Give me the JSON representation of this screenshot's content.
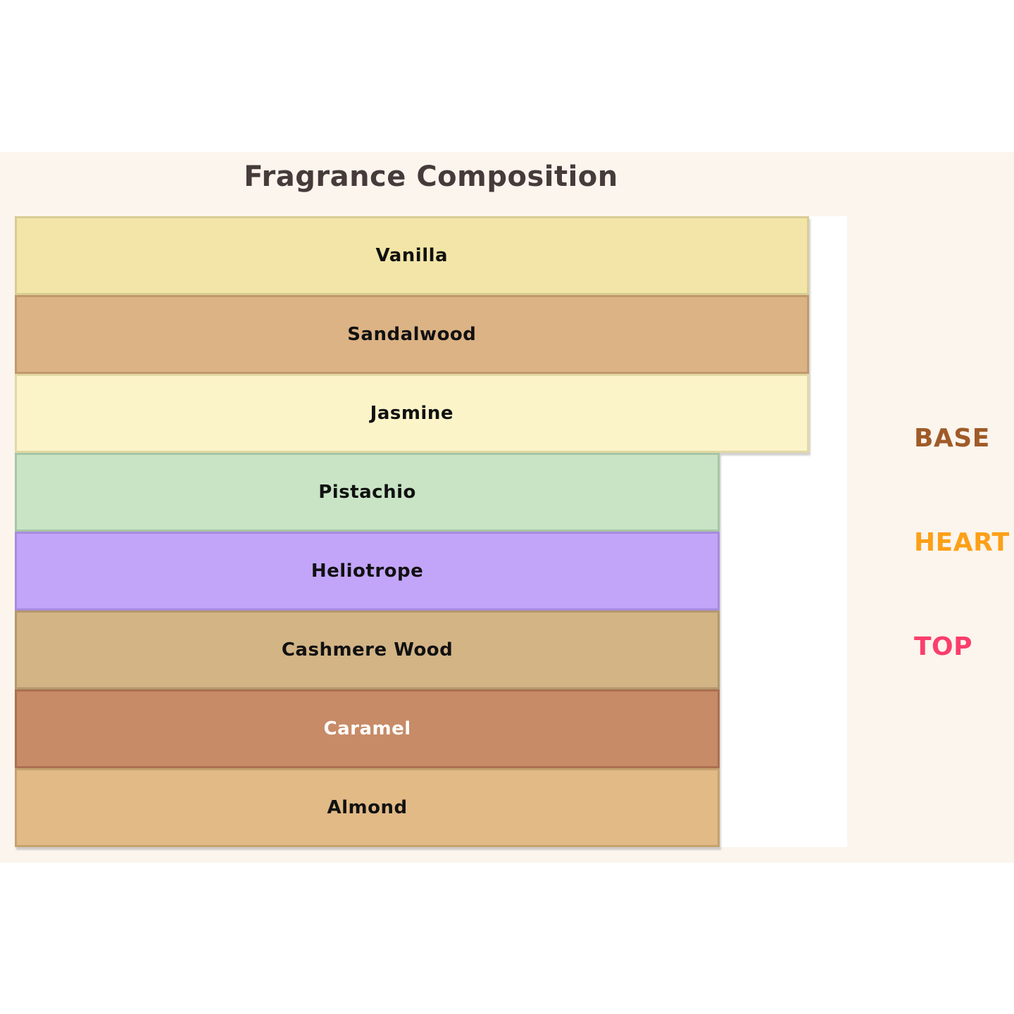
{
  "page": {
    "background": "#FFFFFF",
    "figure_background": "#FBF5ED",
    "plot_background": "#FFFFFF"
  },
  "chart_data": {
    "type": "bar",
    "orientation": "horizontal",
    "title": "Fragrance Composition",
    "title_color": "#463B3B",
    "grid": false,
    "axes_visible": false,
    "legend_position": "right",
    "categories": [
      "Vanilla",
      "Sandalwood",
      "Jasmine",
      "Pistachio",
      "Heliotrope",
      "Cashmere Wood",
      "Caramel",
      "Almond"
    ],
    "values_pct_of_plot_width": [
      95.4,
      95.4,
      95.4,
      84.7,
      84.7,
      84.7,
      84.7,
      84.7
    ],
    "notes": [
      {
        "label": "Vanilla",
        "group": "BASE",
        "width_pct": 95.4,
        "fill": "#F2E5A7",
        "border": "#D8CD95",
        "text_color": "#111111"
      },
      {
        "label": "Sandalwood",
        "group": "BASE",
        "width_pct": 95.4,
        "fill": "#DCB384",
        "border": "#C1996B",
        "text_color": "#111111"
      },
      {
        "label": "Jasmine",
        "group": "BASE",
        "width_pct": 95.4,
        "fill": "#FCF4C9",
        "border": "#E2D9A4",
        "text_color": "#111111"
      },
      {
        "label": "Pistachio",
        "group": "HEART",
        "width_pct": 84.7,
        "fill": "#C8E4C5",
        "border": "#A8C5A5",
        "text_color": "#111111"
      },
      {
        "label": "Heliotrope",
        "group": "HEART",
        "width_pct": 84.7,
        "fill": "#C2A5F9",
        "border": "#A78BDE",
        "text_color": "#111111"
      },
      {
        "label": "Cashmere Wood",
        "group": "TOP",
        "width_pct": 84.7,
        "fill": "#D2B485",
        "border": "#B3986D",
        "text_color": "#111111"
      },
      {
        "label": "Caramel",
        "group": "TOP",
        "width_pct": 84.7,
        "fill": "#C78B67",
        "border": "#AA7051",
        "text_color": "#FFFFFF"
      },
      {
        "label": "Almond",
        "group": "TOP",
        "width_pct": 84.7,
        "fill": "#E1BA86",
        "border": "#C5A26E",
        "text_color": "#111111"
      }
    ],
    "group_labels": [
      {
        "label": "BASE",
        "color": "#9F5B28"
      },
      {
        "label": "HEART",
        "color": "#FCA018"
      },
      {
        "label": "TOP",
        "color": "#FB3E6C"
      }
    ]
  }
}
